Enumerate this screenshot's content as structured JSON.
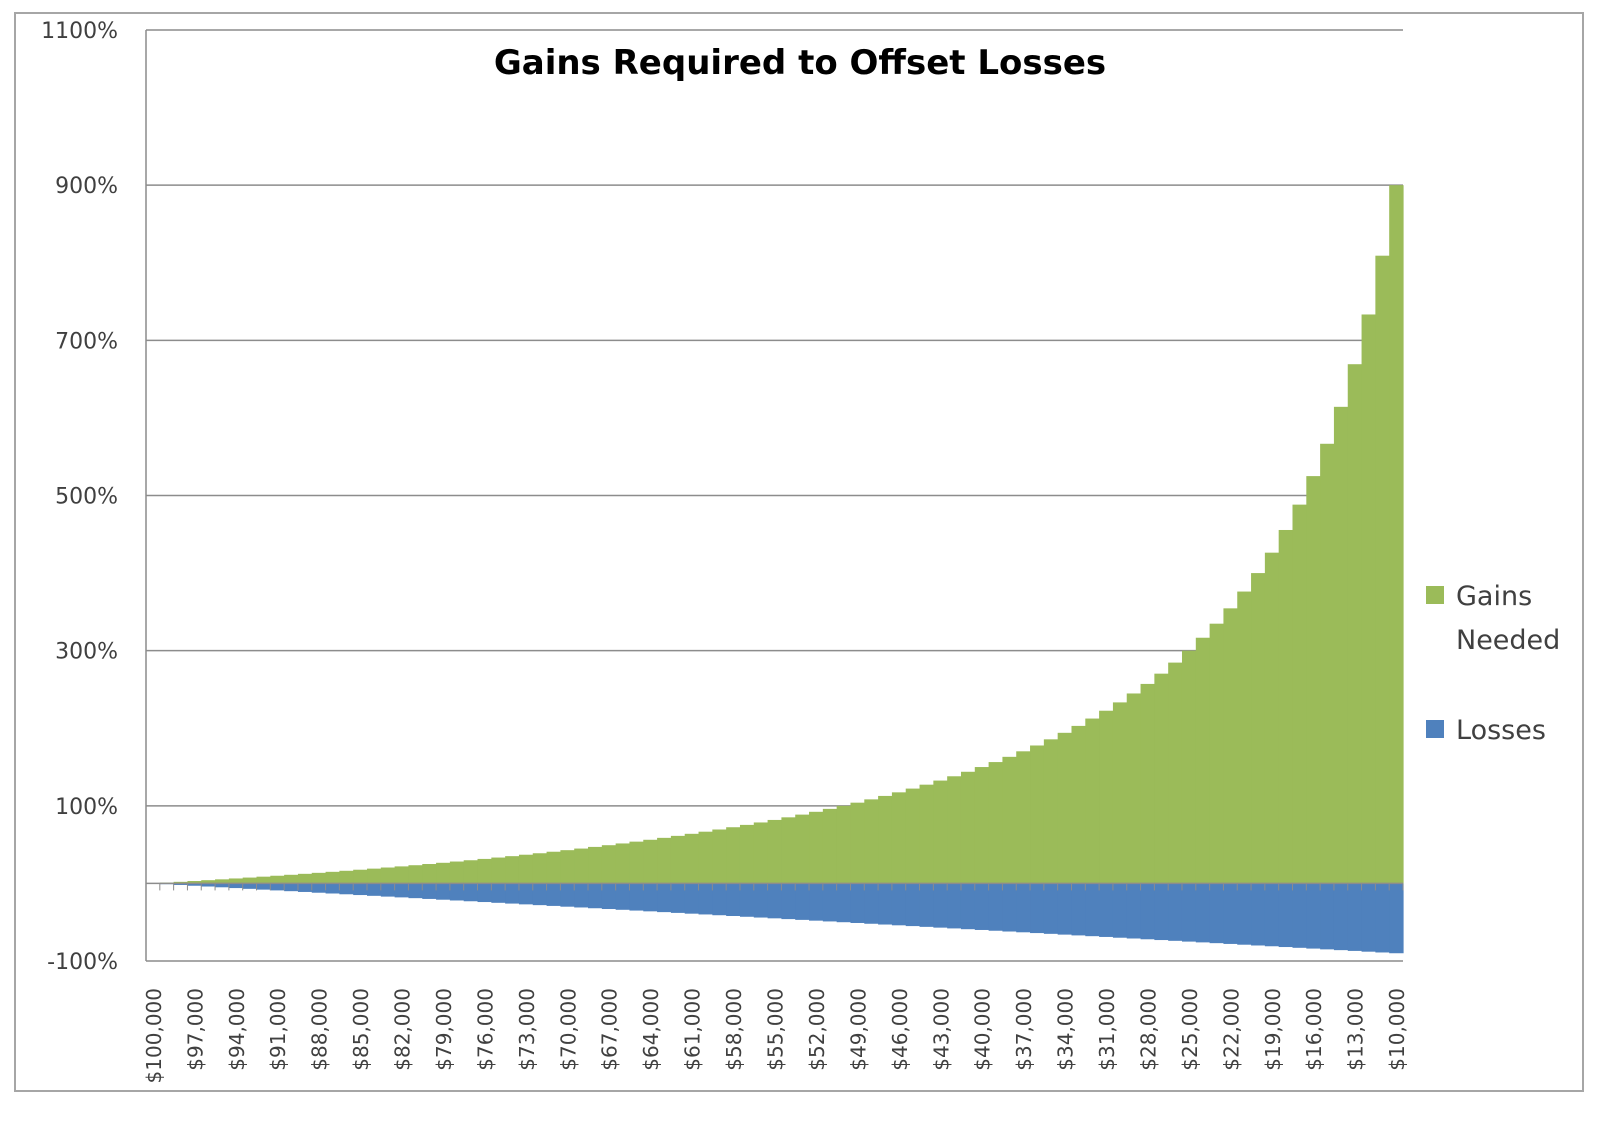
{
  "chart_data": {
    "type": "bar",
    "title": "Gains Required to Offset Losses",
    "xlabel": "",
    "ylabel": "",
    "ylim": [
      -100,
      1100
    ],
    "yticks": [
      "-100%",
      "100%",
      "300%",
      "500%",
      "700%",
      "900%",
      "1100%"
    ],
    "ytick_values": [
      -100,
      100,
      300,
      500,
      700,
      900,
      1100
    ],
    "x_start": 100000,
    "x_end": 10000,
    "x_step": 1000,
    "x_tick_labels": [
      "$100,000",
      "$97,000",
      "$94,000",
      "$91,000",
      "$88,000",
      "$85,000",
      "$82,000",
      "$79,000",
      "$76,000",
      "$73,000",
      "$70,000",
      "$67,000",
      "$64,000",
      "$61,000",
      "$58,000",
      "$55,000",
      "$52,000",
      "$49,000",
      "$46,000",
      "$43,000",
      "$40,000",
      "$37,000",
      "$34,000",
      "$31,000",
      "$28,000",
      "$25,000",
      "$22,000",
      "$19,000",
      "$16,000",
      "$13,000",
      "$10,000"
    ],
    "series": [
      {
        "name": "Gains Needed",
        "color": "#9bbb59",
        "formula": "(100000 / value - 1) * 100"
      },
      {
        "name": "Losses",
        "color": "#4f81bd",
        "formula": "(value / 100000 - 1) * 100"
      }
    ],
    "grid": true,
    "legend_position": "right"
  },
  "legend": {
    "gains_line1": "Gains",
    "gains_line2": "Needed",
    "losses": "Losses"
  }
}
